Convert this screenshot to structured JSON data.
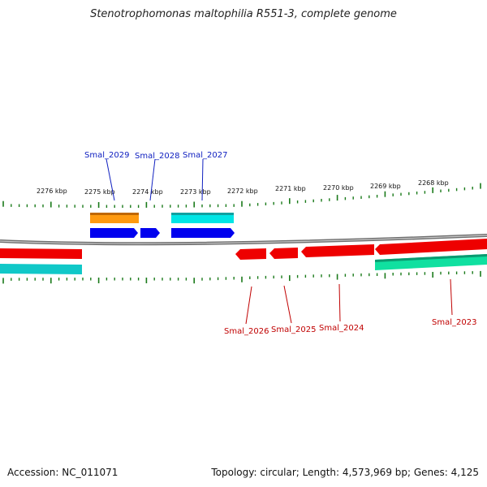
{
  "title": "Stenotrophomonas maltophilia R551-3, complete genome",
  "footer": {
    "accession": "Accession: NC_011071",
    "summary": "Topology: circular; Length: 4,573,969 bp; Genes: 4,125"
  },
  "colors": {
    "backbone": "#7a7a7a",
    "tick": "#1a7a1a",
    "forward_cds": "#0000ee",
    "reverse_cds": "#ee0000",
    "forward_other": "#ff9a10",
    "forward_cyan": "#00e5e5",
    "reverse_cyan": "#10c8c8",
    "reverse_green": "#10e0a0",
    "label_forward": "#1020c0",
    "label_reverse": "#c00000"
  },
  "scale_labels": [
    "2276 kbp",
    "2275 kbp",
    "2274 kbp",
    "2273 kbp",
    "2272 kbp",
    "2271 kbp",
    "2270 kbp",
    "2269 kbp",
    "2268 kbp"
  ],
  "gene_labels_top": [
    "Smal_2029",
    "Smal_2028",
    "Smal_2027"
  ],
  "gene_labels_bottom": [
    "Smal_2026",
    "Smal_2025",
    "Smal_2024",
    "Smal_2023"
  ]
}
